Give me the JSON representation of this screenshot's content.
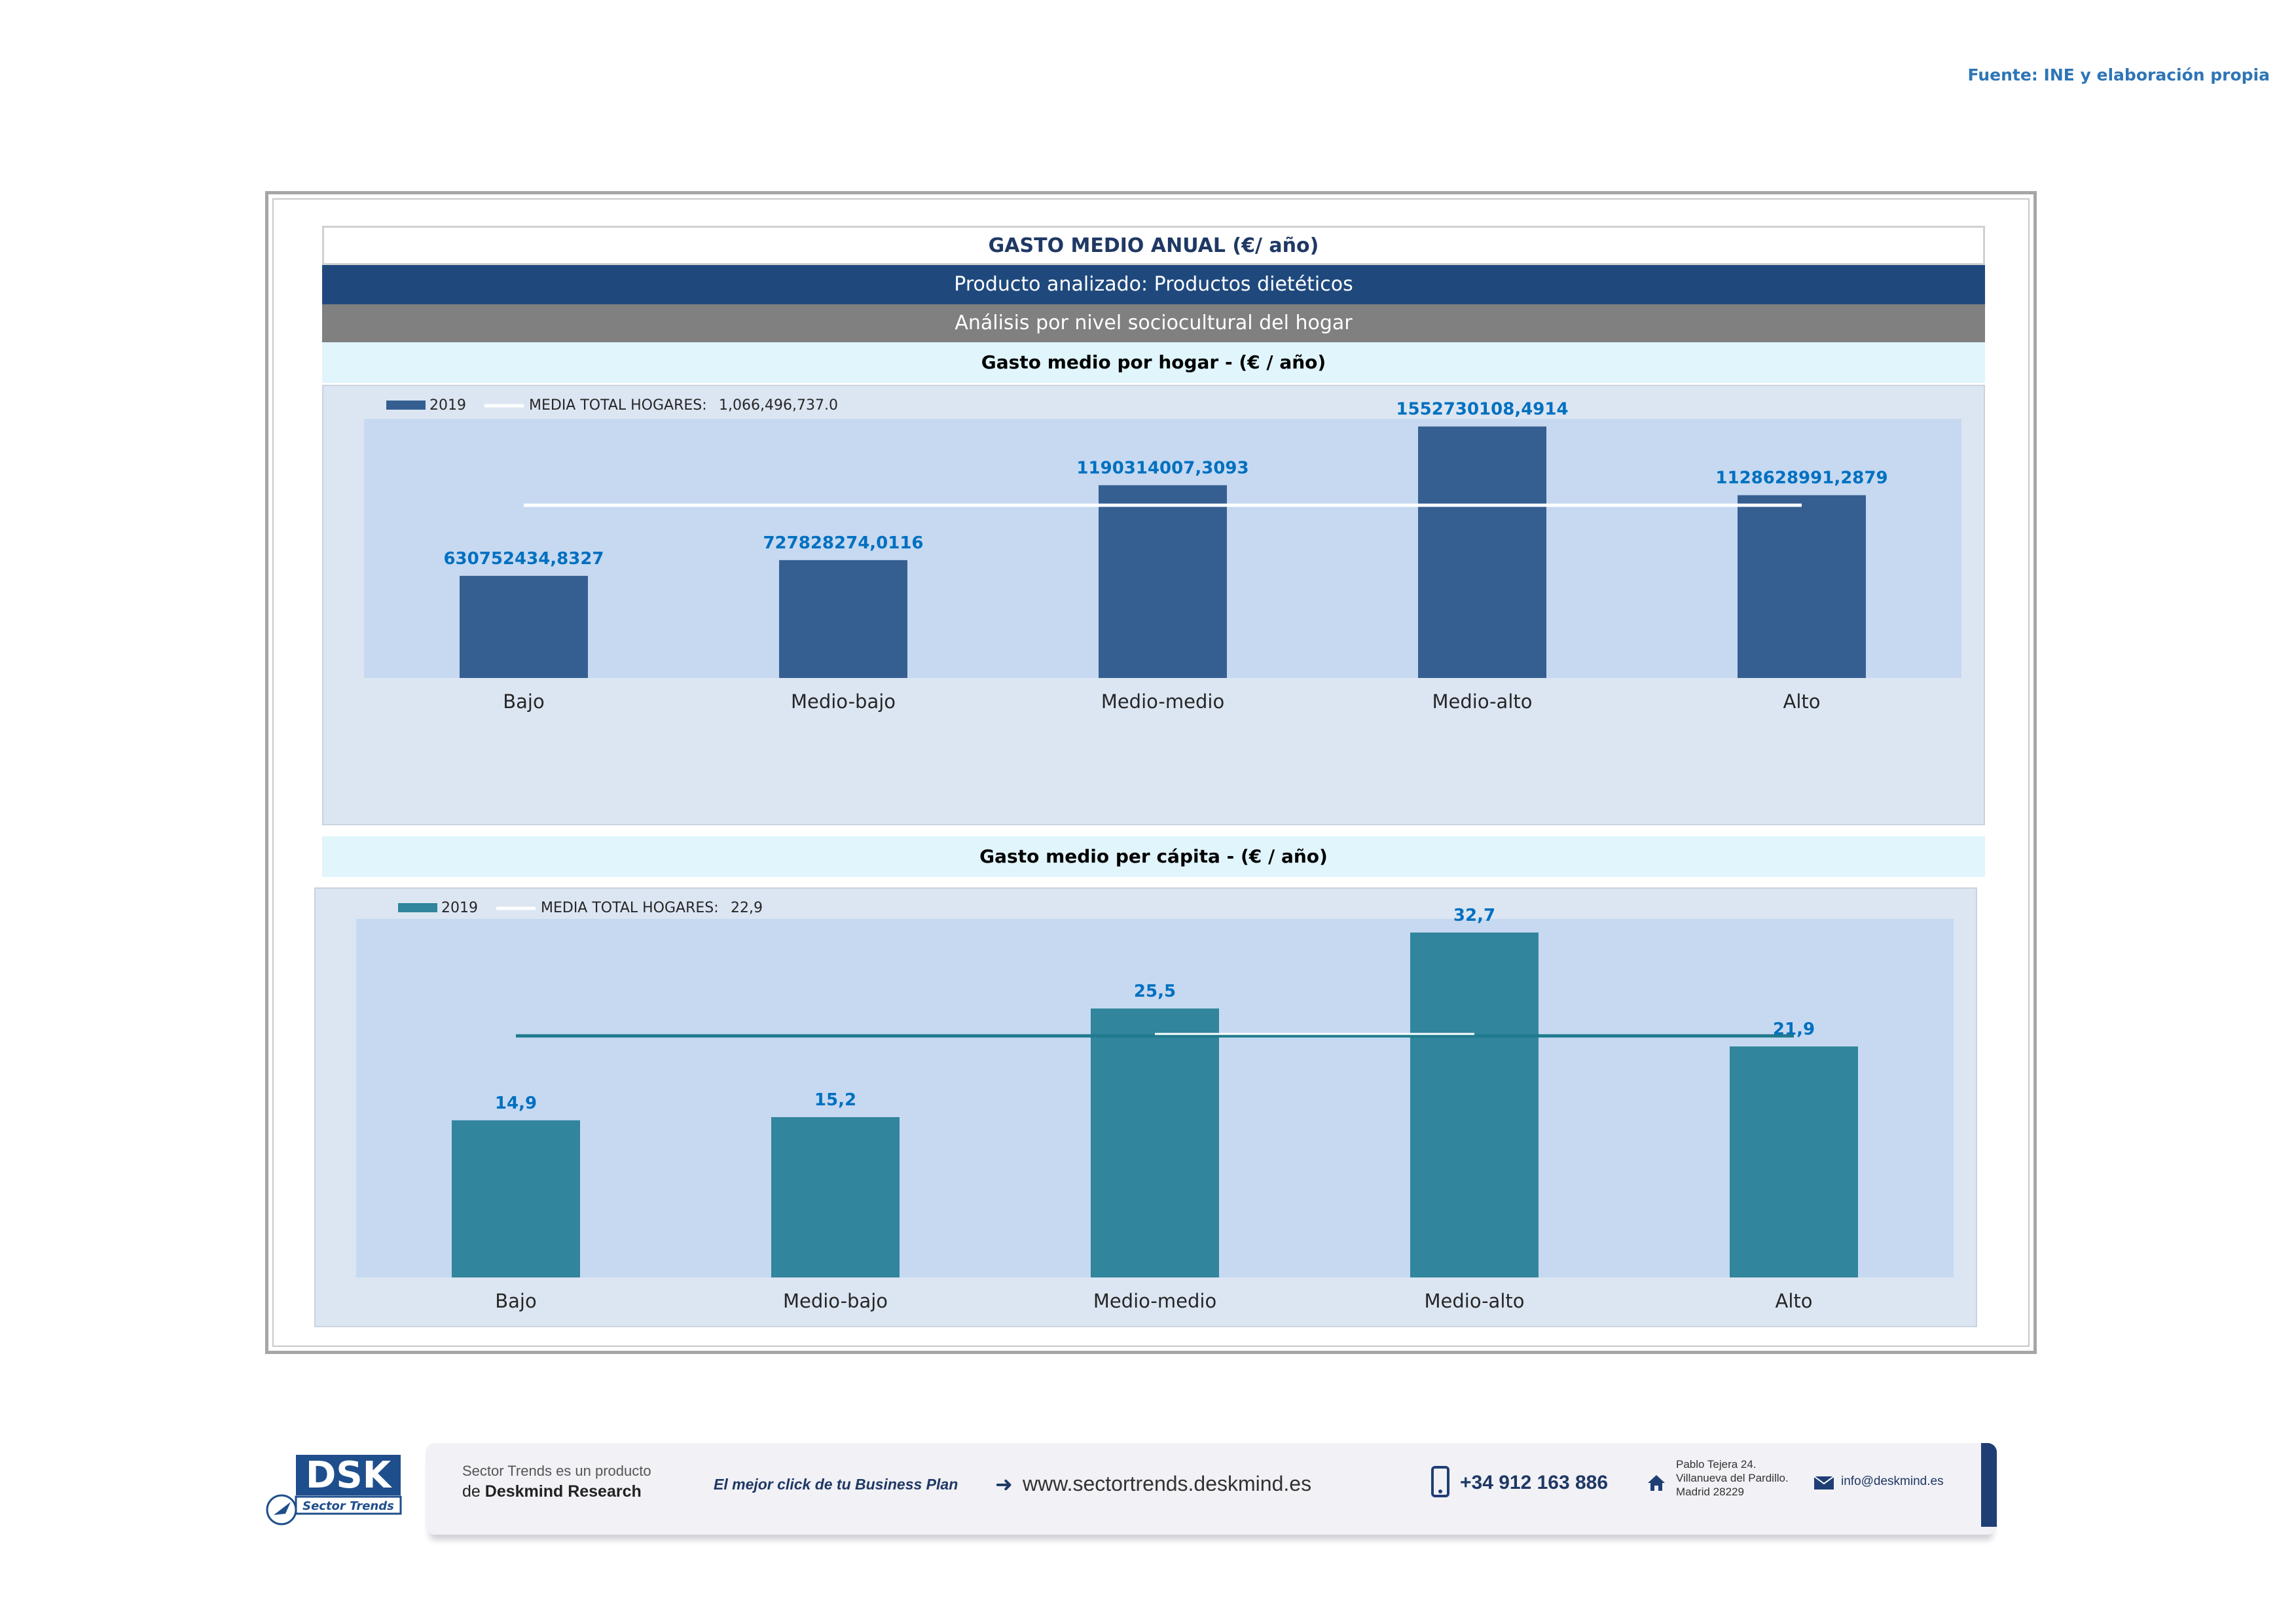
{
  "source": "Fuente: INE y elaboración propia",
  "header": {
    "title": "GASTO MEDIO ANUAL (€/ año)",
    "product": "Producto analizado: Productos dietéticos",
    "analysis": "Análisis por nivel sociocultural del hogar"
  },
  "colors": {
    "bar1": "#365f91",
    "bar2": "#31859c",
    "label": "#0070c0",
    "plot": "#c6d9f1",
    "panel": "#dce6f2"
  },
  "chart_data": [
    {
      "type": "bar",
      "title": "Gasto medio por hogar -  (€ / año)",
      "categories": [
        "Bajo",
        "Medio-bajo",
        "Medio-medio",
        "Medio-alto",
        "Alto"
      ],
      "series": [
        {
          "name": "2019",
          "values": [
            630752434.8327,
            727828274.0116,
            1190314007.3093,
            1552730108.4914,
            1128628991.2879
          ],
          "labels": [
            "630752434,8327",
            "727828274,0116",
            "1190314007,3093",
            "1552730108,4914",
            "1128628991,2879"
          ]
        }
      ],
      "reference_line": {
        "name": "MEDIA TOTAL  HOGARES:",
        "label": "1,066,496,737.0",
        "value": 1066496737.0
      },
      "ylim": [
        0,
        1600000000
      ],
      "grid": false,
      "legend": "top-left"
    },
    {
      "type": "bar",
      "title": "Gasto medio per cápita -  (€ / año)",
      "categories": [
        "Bajo",
        "Medio-bajo",
        "Medio-medio",
        "Medio-alto",
        "Alto"
      ],
      "series": [
        {
          "name": "2019",
          "values": [
            14.9,
            15.2,
            25.5,
            32.7,
            21.9
          ],
          "labels": [
            "14,9",
            "15,2",
            "25,5",
            "32,7",
            "21,9"
          ]
        }
      ],
      "reference_line": {
        "name": "MEDIA TOTAL  HOGARES:",
        "label": "22,9",
        "value": 22.9
      },
      "ylim": [
        0,
        34
      ],
      "grid": false,
      "legend": "top-left"
    }
  ],
  "footer": {
    "product_line1": "Sector Trends es un producto",
    "product_line2_prefix": "de",
    "product_line2_brand": "Deskmind Research",
    "slogan": "El mejor click de tu Business Plan",
    "website": "www.sectortrends.deskmind.es",
    "phone": "+34 912 163 886",
    "address1": "Pablo Tejera 24.",
    "address2": "Villanueva del Pardillo.",
    "address3": "Madrid 28229",
    "email": "info@deskmind.es"
  }
}
